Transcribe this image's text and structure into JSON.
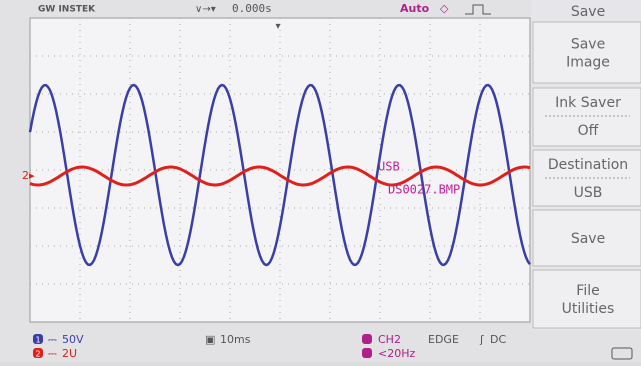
{
  "header": {
    "brand": "GW INSTEK",
    "trigger_delay": "0.000s",
    "trigger_mode": "Auto"
  },
  "menu": {
    "title": "Save",
    "items": [
      {
        "label": "Save Image"
      },
      {
        "label": "Ink Saver",
        "value": "Off"
      },
      {
        "label": "Destination",
        "value": "USB"
      },
      {
        "label": "Save"
      },
      {
        "label": "File Utilities"
      }
    ]
  },
  "overlay": {
    "destination": "USB",
    "filename": "DS0027.BMP"
  },
  "footer": {
    "ch1_badge": "1",
    "ch1_scale": "50V",
    "ch2_badge": "2",
    "ch2_scale": "2U",
    "timebase": "10ms",
    "trigger_source": "CH2",
    "trigger_type": "EDGE",
    "trigger_coupling": "DC",
    "freq": "<20Hz"
  }
}
